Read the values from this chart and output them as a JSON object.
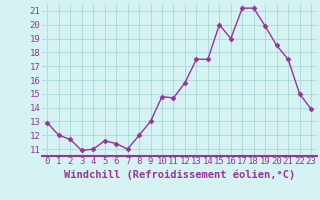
{
  "x": [
    0,
    1,
    2,
    3,
    4,
    5,
    6,
    7,
    8,
    9,
    10,
    11,
    12,
    13,
    14,
    15,
    16,
    17,
    18,
    19,
    20,
    21,
    22,
    23
  ],
  "y": [
    12.9,
    12.0,
    11.7,
    10.9,
    11.0,
    11.6,
    11.4,
    11.0,
    12.0,
    13.0,
    14.8,
    14.7,
    15.8,
    17.5,
    17.5,
    20.0,
    19.0,
    21.2,
    21.2,
    19.9,
    18.5,
    17.5,
    15.0,
    13.9
  ],
  "line_color": "#993399",
  "marker": "D",
  "marker_size": 2.5,
  "xlabel": "Windchill (Refroidissement éolien,°C)",
  "xlabel_fontsize": 7.5,
  "ylim": [
    10.5,
    21.5
  ],
  "xlim": [
    -0.5,
    23.5
  ],
  "yticks": [
    11,
    12,
    13,
    14,
    15,
    16,
    17,
    18,
    19,
    20,
    21
  ],
  "xticks": [
    0,
    1,
    2,
    3,
    4,
    5,
    6,
    7,
    8,
    9,
    10,
    11,
    12,
    13,
    14,
    15,
    16,
    17,
    18,
    19,
    20,
    21,
    22,
    23
  ],
  "xtick_labels": [
    "0",
    "1",
    "2",
    "3",
    "4",
    "5",
    "6",
    "7",
    "8",
    "9",
    "10",
    "11",
    "12",
    "13",
    "14",
    "15",
    "16",
    "17",
    "18",
    "19",
    "20",
    "21",
    "22",
    "23"
  ],
  "background_color": "#d6f3f3",
  "grid_color": "#aad8d8",
  "tick_color": "#993399",
  "tick_fontsize": 6.5,
  "line_width": 1.0
}
